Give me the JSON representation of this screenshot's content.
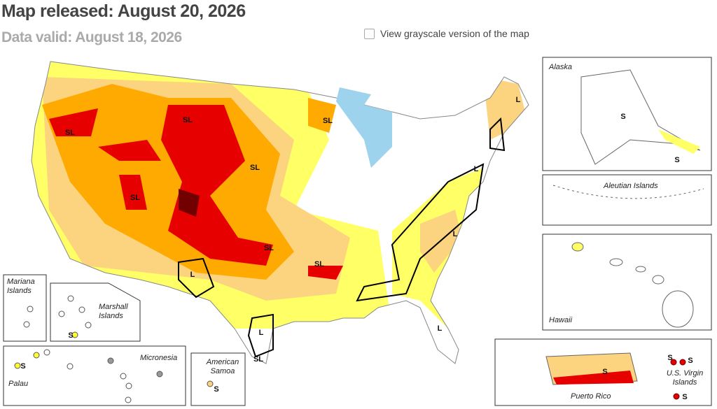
{
  "header": {
    "title": "Map released: August 20, 2026",
    "subtitle": "Data valid: August 18, 2026"
  },
  "controls": {
    "grayscale_toggle": "View grayscale version of the map"
  },
  "insets": {
    "alaska": "Alaska",
    "aleutian": "Aleutian Islands",
    "hawaii": "Hawaii",
    "puerto_rico": "Puerto Rico",
    "virgin_islands": "U.S. Virgin Islands",
    "mariana": "Mariana Islands",
    "marshall": "Marshall Islands",
    "palau": "Palau",
    "micronesia": "Micronesia",
    "american_samoa": "American Samoa"
  },
  "impact_labels": [
    "SL",
    "SL",
    "SL",
    "SL",
    "SL",
    "SL",
    "SL",
    "L",
    "L",
    "L",
    "L",
    "L",
    "SL",
    "L",
    "S",
    "S",
    "S",
    "S",
    "S",
    "S",
    "S",
    "S",
    "S"
  ]
}
